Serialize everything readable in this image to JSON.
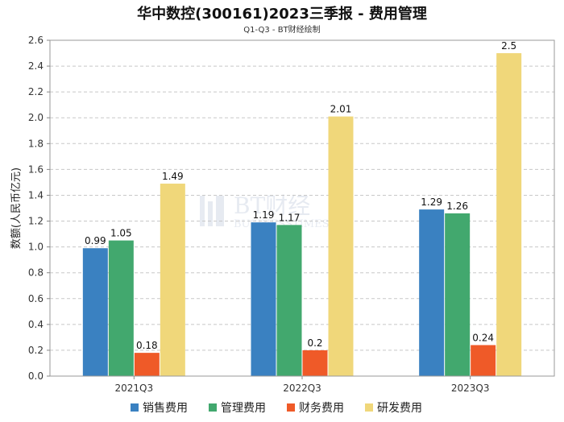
{
  "chart_data": {
    "type": "bar",
    "title": "华中数控(300161)2023三季报 - 费用管理",
    "subtitle": "Q1-Q3 - BT财经绘制",
    "xlabel": "",
    "ylabel": "数额(人民币亿元)",
    "categories": [
      "2021Q3",
      "2022Q3",
      "2023Q3"
    ],
    "series": [
      {
        "name": "销售费用",
        "color": "#3a81c1",
        "values": [
          0.99,
          1.19,
          1.29
        ]
      },
      {
        "name": "管理费用",
        "color": "#42a86e",
        "values": [
          1.05,
          1.17,
          1.26
        ]
      },
      {
        "name": "财务费用",
        "color": "#ef5a28",
        "values": [
          0.18,
          0.2,
          0.24
        ]
      },
      {
        "name": "研发费用",
        "color": "#f0d77a",
        "values": [
          1.49,
          2.01,
          2.5
        ]
      }
    ],
    "ylim": [
      0,
      2.6
    ],
    "yticks": [
      "0.0",
      "0.2",
      "0.4",
      "0.6",
      "0.8",
      "1.0",
      "1.2",
      "1.4",
      "1.6",
      "1.8",
      "2.0",
      "2.2",
      "2.4",
      "2.6"
    ],
    "grid": true,
    "legend_position": "bottom"
  },
  "watermark": {
    "line1": "BT财经",
    "line2": "BUSINESSTIMES"
  }
}
